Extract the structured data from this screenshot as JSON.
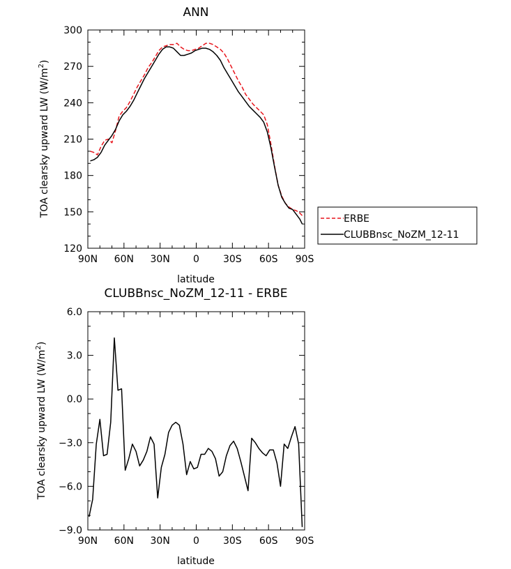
{
  "chart_data": [
    {
      "type": "line",
      "title": "ANN",
      "xlabel": "latitude",
      "ylabel_text": "TOA clearsky upward LW (W/m",
      "ylabel_sup": "2",
      "ylabel_close": ")",
      "xticks": [
        {
          "value": 90,
          "label": "90N"
        },
        {
          "value": 60,
          "label": "60N"
        },
        {
          "value": 30,
          "label": "30N"
        },
        {
          "value": 0,
          "label": "0"
        },
        {
          "value": -30,
          "label": "30S"
        },
        {
          "value": -60,
          "label": "60S"
        },
        {
          "value": -90,
          "label": "90S"
        }
      ],
      "xlim": [
        90,
        -90
      ],
      "ylim": [
        120,
        300
      ],
      "yticks": [
        {
          "value": 120,
          "label": "120"
        },
        {
          "value": 150,
          "label": "150"
        },
        {
          "value": 180,
          "label": "180"
        },
        {
          "value": 210,
          "label": "210"
        },
        {
          "value": 240,
          "label": "240"
        },
        {
          "value": 270,
          "label": "270"
        },
        {
          "value": 300,
          "label": "300"
        }
      ],
      "legend_placement": "right",
      "series": [
        {
          "name": "ERBE",
          "color": "#e8141b",
          "style": "dashed",
          "x": [
            88,
            85,
            82,
            79,
            76,
            73,
            70,
            67,
            64,
            61,
            58,
            55,
            52,
            49,
            46,
            43,
            40,
            37,
            34,
            31,
            28,
            25,
            22,
            19,
            16,
            13,
            10,
            7,
            4,
            1,
            -2,
            -5,
            -8,
            -11,
            -14,
            -17,
            -20,
            -23,
            -26,
            -29,
            -32,
            -35,
            -38,
            -41,
            -44,
            -47,
            -50,
            -53,
            -56,
            -59,
            -62,
            -65,
            -68,
            -71,
            -74,
            -77,
            -80,
            -83,
            -86,
            -88
          ],
          "y": [
            200,
            199,
            197,
            204,
            209,
            210,
            207,
            217,
            229,
            233,
            236,
            241,
            247,
            253,
            258,
            263,
            269,
            273,
            278,
            283,
            286,
            287,
            288,
            288,
            289,
            286,
            284,
            283,
            283,
            284,
            285,
            287,
            289,
            289,
            288,
            286,
            284,
            281,
            276,
            270,
            264,
            258,
            253,
            247,
            243,
            239,
            236,
            233,
            230,
            222,
            206,
            188,
            172,
            163,
            157,
            154,
            152,
            151,
            149,
            147
          ]
        },
        {
          "name": "CLUBBnsc_NoZM_12-11",
          "color": "#000000",
          "style": "solid",
          "x": [
            88,
            85,
            82,
            79,
            76,
            73,
            70,
            67,
            64,
            61,
            58,
            55,
            52,
            49,
            46,
            43,
            40,
            37,
            34,
            31,
            28,
            25,
            22,
            19,
            16,
            13,
            10,
            7,
            4,
            1,
            -2,
            -5,
            -8,
            -11,
            -14,
            -17,
            -20,
            -23,
            -26,
            -29,
            -32,
            -35,
            -38,
            -41,
            -44,
            -47,
            -50,
            -53,
            -56,
            -59,
            -62,
            -65,
            -68,
            -71,
            -74,
            -77,
            -80,
            -83,
            -86,
            -88
          ],
          "y": [
            192,
            193,
            195,
            199,
            205,
            209,
            213,
            218,
            225,
            230,
            233,
            237,
            242,
            248,
            254,
            260,
            265,
            270,
            275,
            280,
            284,
            286,
            286,
            285,
            282,
            279,
            279,
            280,
            281,
            283,
            284,
            285,
            285,
            284,
            282,
            279,
            275,
            269,
            264,
            259,
            254,
            249,
            245,
            241,
            237,
            234,
            231,
            228,
            224,
            216,
            203,
            187,
            172,
            162,
            157,
            153,
            152,
            148,
            144,
            140
          ]
        }
      ]
    },
    {
      "type": "line",
      "title": "CLUBBnsc_NoZM_12-11 - ERBE",
      "xlabel": "latitude",
      "ylabel_text": "TOA clearsky upward LW (W/m",
      "ylabel_sup": "2",
      "ylabel_close": ")",
      "xticks": [
        {
          "value": 90,
          "label": "90N"
        },
        {
          "value": 60,
          "label": "60N"
        },
        {
          "value": 30,
          "label": "30N"
        },
        {
          "value": 0,
          "label": "0"
        },
        {
          "value": -30,
          "label": "30S"
        },
        {
          "value": -60,
          "label": "60S"
        },
        {
          "value": -90,
          "label": "90S"
        }
      ],
      "xlim": [
        90,
        -90
      ],
      "ylim": [
        -9.0,
        6.0
      ],
      "yticks": [
        {
          "value": -9,
          "label": "−9.0"
        },
        {
          "value": -6,
          "label": "−6.0"
        },
        {
          "value": -3,
          "label": "−3.0"
        },
        {
          "value": 0,
          "label": "0.0"
        },
        {
          "value": 3,
          "label": "3.0"
        },
        {
          "value": 6,
          "label": "6.0"
        }
      ],
      "series": [
        {
          "color": "#000000",
          "style": "solid",
          "x": [
            89,
            86,
            83,
            80,
            77,
            74,
            71,
            68,
            65,
            62,
            59,
            56,
            53,
            50,
            47,
            44,
            41,
            38,
            35,
            32,
            29,
            26,
            23,
            20,
            17,
            14,
            11,
            8,
            5,
            2,
            -1,
            -4,
            -7,
            -10,
            -13,
            -16,
            -19,
            -22,
            -25,
            -28,
            -31,
            -34,
            -37,
            -40,
            -43,
            -46,
            -49,
            -52,
            -55,
            -58,
            -61,
            -64,
            -67,
            -70,
            -73,
            -76,
            -79,
            -82,
            -85,
            -88
          ],
          "y": [
            -8.1,
            -6.9,
            -3.1,
            -1.4,
            -3.9,
            -3.8,
            -1.6,
            4.2,
            0.6,
            0.7,
            -4.9,
            -4.1,
            -3.1,
            -3.6,
            -4.6,
            -4.2,
            -3.6,
            -2.6,
            -3.1,
            -6.8,
            -4.7,
            -3.8,
            -2.3,
            -1.8,
            -1.6,
            -1.8,
            -3.1,
            -5.2,
            -4.3,
            -4.8,
            -4.7,
            -3.8,
            -3.8,
            -3.4,
            -3.6,
            -4.1,
            -5.3,
            -5.0,
            -3.9,
            -3.2,
            -2.9,
            -3.4,
            -4.3,
            -5.3,
            -6.3,
            -2.7,
            -3.0,
            -3.4,
            -3.7,
            -3.9,
            -3.5,
            -3.5,
            -4.4,
            -6.0,
            -3.1,
            -3.4,
            -2.6,
            -1.9,
            -3.1,
            -8.8
          ]
        }
      ]
    }
  ]
}
